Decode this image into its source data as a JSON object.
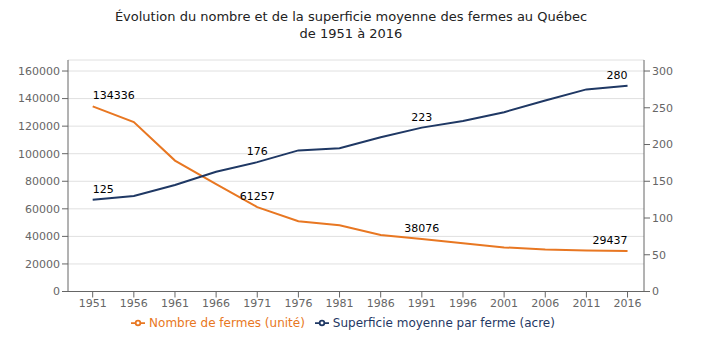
{
  "chart_data": {
    "type": "line",
    "title": "Évolution du nombre et de la superficie moyenne des fermes au Québec\nde 1951 à 2016",
    "x": [
      1951,
      1956,
      1961,
      1966,
      1971,
      1976,
      1981,
      1986,
      1991,
      1996,
      2001,
      2006,
      2011,
      2016
    ],
    "series": [
      {
        "name": "Nombre de fermes (unité)",
        "color": "#E87722",
        "axis": "y",
        "values": [
          134336,
          123000,
          95000,
          78000,
          61257,
          51000,
          48000,
          41000,
          38076,
          35000,
          32000,
          30500,
          29700,
          29437
        ]
      },
      {
        "name": "Superficie moyenne par ferme (acre)",
        "color": "#1F3864",
        "axis": "y2",
        "values": [
          125,
          130,
          145,
          163,
          176,
          192,
          195,
          210,
          223,
          232,
          244,
          260,
          275,
          280
        ]
      }
    ],
    "xlim": [
      1948,
      2018
    ],
    "xticks": [
      1951,
      1956,
      1961,
      1966,
      1971,
      1976,
      1981,
      1986,
      1991,
      1996,
      2001,
      2006,
      2011,
      2016
    ],
    "ylim": [
      0,
      168000
    ],
    "yticks": [
      0,
      20000,
      40000,
      60000,
      80000,
      100000,
      120000,
      140000,
      160000
    ],
    "y2lim": [
      0,
      315
    ],
    "y2ticks": [
      0,
      50,
      100,
      150,
      200,
      250,
      300
    ],
    "grid": true,
    "legend": "bottom",
    "annotations": [
      {
        "text": "134336",
        "x": 1951,
        "y": 134336,
        "axis": "y"
      },
      {
        "text": "61257",
        "x": 1971,
        "y": 61257,
        "axis": "y"
      },
      {
        "text": "38076",
        "x": 1991,
        "y": 38076,
        "axis": "y"
      },
      {
        "text": "29437",
        "x": 2016,
        "y": 29437,
        "axis": "y"
      },
      {
        "text": "125",
        "x": 1951,
        "y": 125,
        "axis": "y2"
      },
      {
        "text": "176",
        "x": 1971,
        "y": 176,
        "axis": "y2"
      },
      {
        "text": "223",
        "x": 1991,
        "y": 223,
        "axis": "y2"
      },
      {
        "text": "280",
        "x": 2016,
        "y": 280,
        "axis": "y2"
      }
    ]
  }
}
